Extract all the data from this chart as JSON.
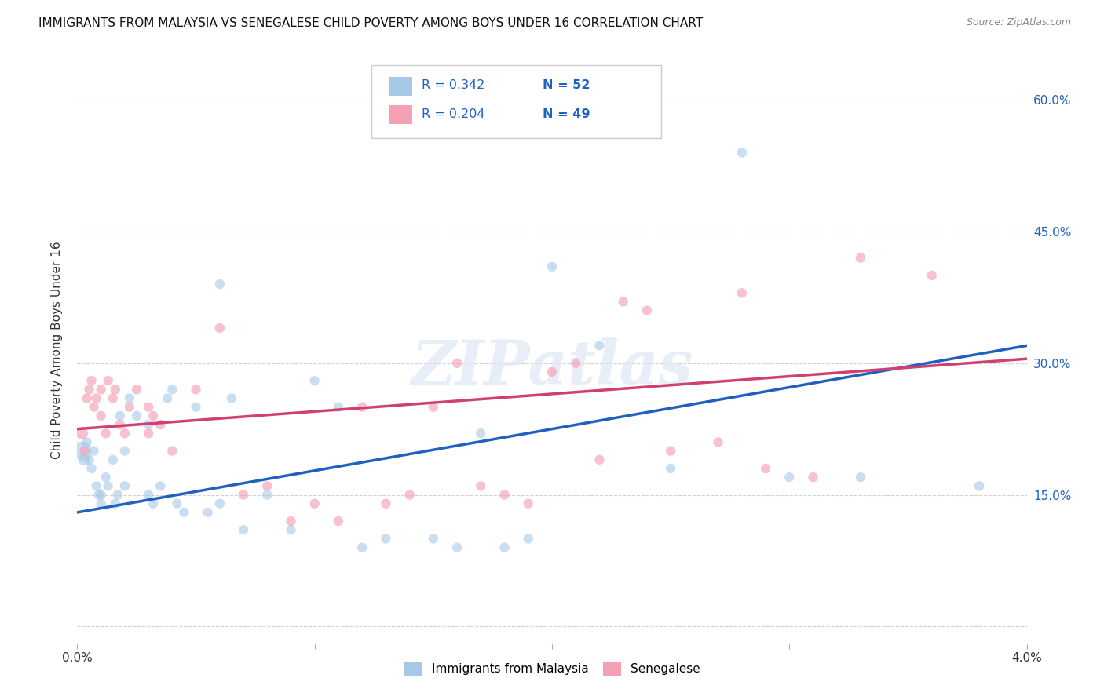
{
  "title": "IMMIGRANTS FROM MALAYSIA VS SENEGALESE CHILD POVERTY AMONG BOYS UNDER 16 CORRELATION CHART",
  "source": "Source: ZipAtlas.com",
  "ylabel": "Child Poverty Among Boys Under 16",
  "yticks": [
    0.0,
    0.15,
    0.3,
    0.45,
    0.6
  ],
  "ytick_labels": [
    "",
    "15.0%",
    "30.0%",
    "45.0%",
    "60.0%"
  ],
  "xlim": [
    0.0,
    0.04
  ],
  "ylim": [
    -0.02,
    0.65
  ],
  "r_malaysia": 0.342,
  "n_malaysia": 52,
  "r_senegalese": 0.204,
  "n_senegalese": 49,
  "color_malaysia": "#a8c8e8",
  "color_senegalese": "#f4a0b5",
  "color_line_malaysia": "#2060c0",
  "color_line_senegalese": "#d04070",
  "watermark": "ZIPatlas",
  "legend_label_malaysia": "Immigrants from Malaysia",
  "legend_label_senegalese": "Senegalese",
  "malaysia_x": [
    0.0002,
    0.0003,
    0.0004,
    0.0005,
    0.0006,
    0.0007,
    0.0008,
    0.0009,
    0.001,
    0.001,
    0.0012,
    0.0013,
    0.0015,
    0.0016,
    0.0017,
    0.0018,
    0.002,
    0.002,
    0.0022,
    0.0025,
    0.003,
    0.003,
    0.0032,
    0.0035,
    0.0038,
    0.004,
    0.0042,
    0.0045,
    0.005,
    0.0055,
    0.006,
    0.006,
    0.0065,
    0.007,
    0.008,
    0.009,
    0.01,
    0.011,
    0.012,
    0.013,
    0.015,
    0.016,
    0.017,
    0.018,
    0.019,
    0.02,
    0.022,
    0.025,
    0.028,
    0.03,
    0.033,
    0.038
  ],
  "malaysia_y": [
    0.2,
    0.19,
    0.21,
    0.19,
    0.18,
    0.2,
    0.16,
    0.15,
    0.14,
    0.15,
    0.17,
    0.16,
    0.19,
    0.14,
    0.15,
    0.24,
    0.2,
    0.16,
    0.26,
    0.24,
    0.15,
    0.23,
    0.14,
    0.16,
    0.26,
    0.27,
    0.14,
    0.13,
    0.25,
    0.13,
    0.14,
    0.39,
    0.26,
    0.11,
    0.15,
    0.11,
    0.28,
    0.25,
    0.09,
    0.1,
    0.1,
    0.09,
    0.22,
    0.09,
    0.1,
    0.41,
    0.32,
    0.18,
    0.54,
    0.17,
    0.17,
    0.16
  ],
  "malaysia_sizes": [
    300,
    120,
    80,
    80,
    80,
    80,
    80,
    80,
    80,
    80,
    80,
    80,
    80,
    80,
    80,
    80,
    80,
    80,
    80,
    80,
    80,
    80,
    80,
    80,
    80,
    80,
    80,
    80,
    80,
    80,
    80,
    80,
    80,
    80,
    80,
    80,
    80,
    80,
    80,
    80,
    80,
    80,
    80,
    80,
    80,
    80,
    80,
    80,
    80,
    80,
    80,
    80
  ],
  "senegalese_x": [
    0.0002,
    0.0003,
    0.0004,
    0.0005,
    0.0006,
    0.0007,
    0.0008,
    0.001,
    0.001,
    0.0012,
    0.0013,
    0.0015,
    0.0016,
    0.0018,
    0.002,
    0.0022,
    0.0025,
    0.003,
    0.003,
    0.0032,
    0.0035,
    0.004,
    0.005,
    0.006,
    0.007,
    0.008,
    0.009,
    0.01,
    0.011,
    0.012,
    0.013,
    0.014,
    0.015,
    0.016,
    0.017,
    0.018,
    0.019,
    0.02,
    0.021,
    0.022,
    0.023,
    0.024,
    0.025,
    0.027,
    0.028,
    0.029,
    0.031,
    0.033,
    0.036
  ],
  "senegalese_y": [
    0.22,
    0.2,
    0.26,
    0.27,
    0.28,
    0.25,
    0.26,
    0.24,
    0.27,
    0.22,
    0.28,
    0.26,
    0.27,
    0.23,
    0.22,
    0.25,
    0.27,
    0.25,
    0.22,
    0.24,
    0.23,
    0.2,
    0.27,
    0.34,
    0.15,
    0.16,
    0.12,
    0.14,
    0.12,
    0.25,
    0.14,
    0.15,
    0.25,
    0.3,
    0.16,
    0.15,
    0.14,
    0.29,
    0.3,
    0.19,
    0.37,
    0.36,
    0.2,
    0.21,
    0.38,
    0.18,
    0.17,
    0.42,
    0.4
  ],
  "senegalese_sizes": [
    120,
    80,
    80,
    80,
    80,
    80,
    80,
    80,
    80,
    80,
    80,
    80,
    80,
    80,
    80,
    80,
    80,
    80,
    80,
    80,
    80,
    80,
    80,
    80,
    80,
    80,
    80,
    80,
    80,
    80,
    80,
    80,
    80,
    80,
    80,
    80,
    80,
    80,
    80,
    80,
    80,
    80,
    80,
    80,
    80,
    80,
    80,
    80,
    80
  ],
  "line_malaysia_x0": 0.0,
  "line_malaysia_y0": 0.13,
  "line_malaysia_x1": 0.04,
  "line_malaysia_y1": 0.32,
  "line_senegalese_x0": 0.0,
  "line_senegalese_y0": 0.225,
  "line_senegalese_x1": 0.04,
  "line_senegalese_y1": 0.305
}
